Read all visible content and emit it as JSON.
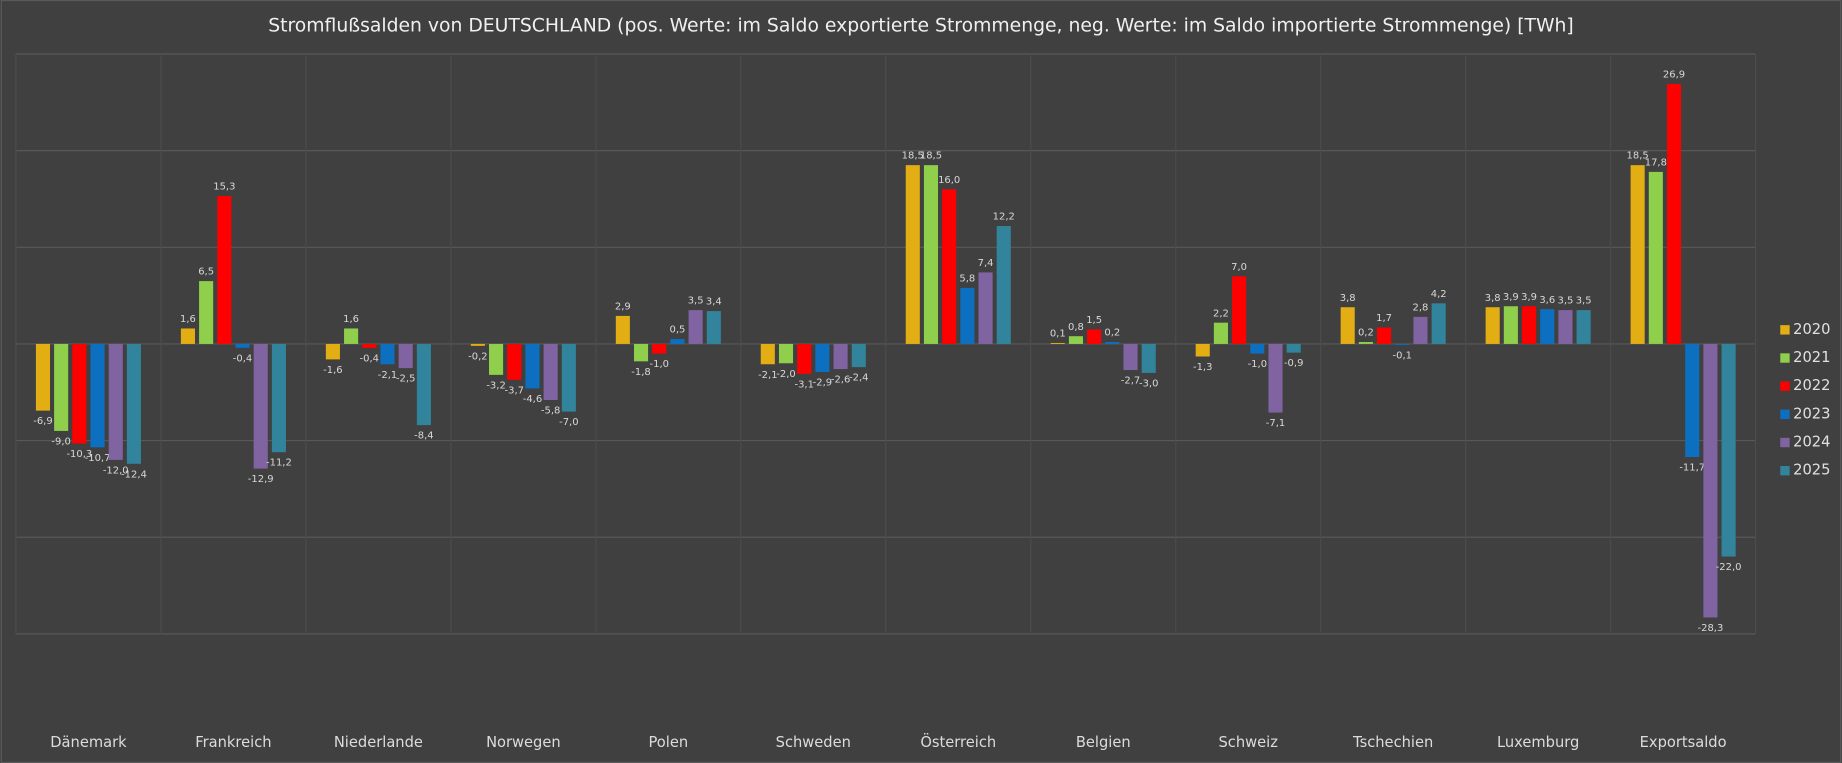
{
  "chart_data": {
    "type": "bar",
    "title": "Stromflußsalden von DEUTSCHLAND (pos. Werte: im Saldo exportierte Strommenge, neg. Werte: im Saldo importierte Strommenge) [TWh]",
    "categories": [
      "Dänemark",
      "Frankreich",
      "Niederlande",
      "Norwegen",
      "Polen",
      "Schweden",
      "Österreich",
      "Belgien",
      "Schweiz",
      "Tschechien",
      "Luxemburg",
      "Exportsaldo"
    ],
    "series": [
      {
        "name": "2020",
        "color": "#e3ad14",
        "values": [
          -6.9,
          1.6,
          -1.6,
          -0.2,
          2.9,
          -2.1,
          18.5,
          0.1,
          -1.3,
          3.8,
          3.8,
          18.5
        ],
        "value_labels": [
          "-6,9",
          "1,6",
          "-1,6",
          "-0,2",
          "2,9",
          "-2,1",
          "18,5",
          "0,1",
          "-1,3",
          "3,8",
          "3,8",
          "18,5"
        ]
      },
      {
        "name": "2021",
        "color": "#8fcf4c",
        "values": [
          -9.0,
          6.5,
          1.6,
          -3.2,
          -1.8,
          -2.0,
          18.5,
          0.8,
          2.2,
          0.2,
          3.9,
          17.8
        ],
        "value_labels": [
          "-9,0",
          "6,5",
          "1,6",
          "-3,2",
          "-1,8",
          "-2,0",
          "18,5",
          "0,8",
          "2,2",
          "0,2",
          "3,9",
          "17,8"
        ]
      },
      {
        "name": "2022",
        "color": "#ff0000",
        "values": [
          -10.3,
          15.3,
          -0.4,
          -3.7,
          -1.0,
          -3.1,
          16.0,
          1.5,
          7.0,
          1.7,
          3.9,
          26.9
        ],
        "value_labels": [
          "-10,3",
          "15,3",
          "-0,4",
          "-3,7",
          "-1,0",
          "-3,1",
          "16,0",
          "1,5",
          "7,0",
          "1,7",
          "3,9",
          "26,9"
        ]
      },
      {
        "name": "2023",
        "color": "#0d6fc0",
        "values": [
          -10.7,
          -0.4,
          -2.1,
          -4.6,
          0.5,
          -2.9,
          5.8,
          0.2,
          -1.0,
          -0.1,
          3.6,
          -11.7
        ],
        "value_labels": [
          "-10,7",
          "-0,4",
          "-2,1",
          "-4,6",
          "0,5",
          "-2,9",
          "5,8",
          "0,2",
          "-1,0",
          "-0,1",
          "3,6",
          "-11,7"
        ]
      },
      {
        "name": "2024",
        "color": "#8064a2",
        "values": [
          -12.0,
          -12.9,
          -2.5,
          -5.8,
          3.5,
          -2.6,
          7.4,
          -2.7,
          -7.1,
          2.8,
          3.5,
          -28.3
        ],
        "value_labels": [
          "-12,0",
          "-12,9",
          "-2,5",
          "-5,8",
          "3,5",
          "-2,6",
          "7,4",
          "-2,7",
          "-7,1",
          "2,8",
          "3,5",
          "-28,3"
        ]
      },
      {
        "name": "2025",
        "color": "#31849b",
        "values": [
          -12.4,
          -11.2,
          -8.4,
          -7.0,
          3.4,
          -2.4,
          12.2,
          -3.0,
          -0.9,
          4.2,
          3.5,
          -22.0
        ],
        "value_labels": [
          "-12,4",
          "-11,2",
          "-8,4",
          "-7,0",
          "3,4",
          "-2,4",
          "12,2",
          "-3,0",
          "-0,9",
          "4,2",
          "3,5",
          "-22,0"
        ]
      }
    ],
    "ylim": [
      -30,
      30
    ],
    "yticks": [
      -30,
      -20,
      -10,
      0,
      10,
      20,
      30
    ],
    "grid": true,
    "legend": "right"
  }
}
